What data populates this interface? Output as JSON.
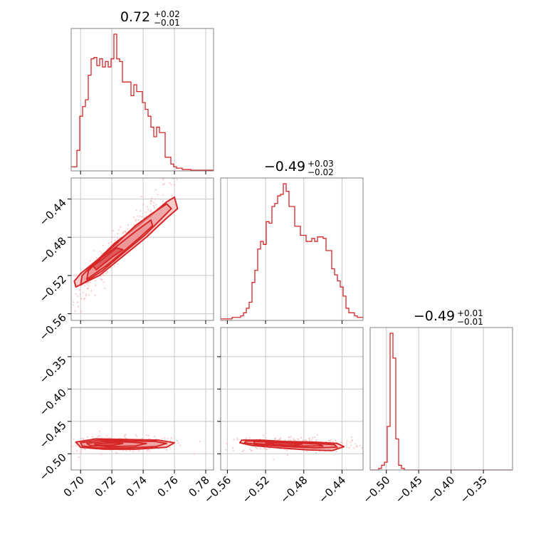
{
  "colors": {
    "line": "#d62728",
    "fill_light": "#f4b9b9",
    "fill_mid": "#ea8a8b",
    "scatter": "#f2b8b8",
    "grid": "#c8c8c8",
    "frame": "#808080"
  },
  "chart_data": {
    "type": "corner",
    "grid": true,
    "titles": [
      {
        "main": "0.72",
        "sup": "+0.02",
        "sub": "−0.01"
      },
      {
        "main": "−0.49",
        "sup": "+0.03",
        "sub": "−0.02"
      },
      {
        "main": "−0.49",
        "sup": "+0.01",
        "sub": "−0.01"
      }
    ],
    "parameters": [
      {
        "range": [
          0.694,
          0.785
        ],
        "ticks": [
          0.7,
          0.72,
          0.74,
          0.76,
          0.78
        ],
        "tick_labels": [
          "0.70",
          "0.72",
          "0.74",
          "0.76",
          "0.78"
        ]
      },
      {
        "range": [
          -0.567,
          -0.418
        ],
        "ticks": [
          -0.56,
          -0.52,
          -0.48,
          -0.44
        ],
        "tick_labels": [
          "−0.56",
          "−0.52",
          "−0.48",
          "−0.44"
        ]
      },
      {
        "range": [
          -0.525,
          -0.305
        ],
        "ticks": [
          -0.5,
          -0.45,
          -0.4,
          -0.35
        ],
        "tick_labels": [
          "−0.50",
          "−0.45",
          "−0.40",
          "−0.35"
        ]
      }
    ],
    "histograms": [
      {
        "parameter": 0,
        "bin_range": [
          0.694,
          0.785
        ],
        "n_bins": 50,
        "heights": [
          3,
          3,
          15,
          40,
          47,
          52,
          70,
          82,
          83,
          77,
          82,
          76,
          80,
          76,
          82,
          100,
          82,
          80,
          65,
          65,
          65,
          55,
          63,
          58,
          58,
          50,
          45,
          40,
          32,
          25,
          32,
          28,
          28,
          10,
          10,
          5,
          3,
          2,
          2,
          1,
          1,
          1,
          0.5,
          0.5,
          0.5,
          0.5,
          0.5,
          0.5,
          0.5,
          0.5
        ]
      },
      {
        "parameter": 1,
        "bin_range": [
          -0.567,
          -0.418
        ],
        "n_bins": 50,
        "heights": [
          1,
          1,
          1,
          1,
          2,
          2,
          2,
          3,
          5,
          8,
          12,
          25,
          33,
          47,
          52,
          50,
          65,
          64,
          75,
          77,
          82,
          83,
          90,
          85,
          75,
          75,
          62,
          62,
          56,
          56,
          52,
          52,
          54,
          52,
          55,
          55,
          54,
          46,
          46,
          34,
          30,
          26,
          22,
          16,
          8,
          5,
          5,
          3,
          2,
          2
        ]
      },
      {
        "parameter": 2,
        "bin_range": [
          -0.525,
          -0.305
        ],
        "n_bins": 50,
        "heights": [
          0,
          0,
          0,
          1,
          3,
          5,
          28,
          88,
          72,
          20,
          3,
          1,
          0,
          0,
          0,
          0,
          0,
          0,
          0,
          0,
          0,
          0,
          0,
          0,
          0,
          0,
          0,
          0,
          0,
          0,
          0,
          0,
          0,
          0,
          0,
          0,
          0,
          0,
          0,
          0,
          0,
          0,
          0,
          0,
          0,
          0,
          0,
          0,
          0,
          0
        ]
      }
    ],
    "joint_panels": [
      {
        "x": 0,
        "y": 1,
        "mean": [
          0.722,
          -0.494
        ],
        "sd": [
          0.014,
          0.028
        ],
        "corr": 0.97,
        "contours": [
          [
            [
              0.697,
              -0.532
            ],
            [
              0.712,
              -0.52
            ],
            [
              0.727,
              -0.5
            ],
            [
              0.742,
              -0.48
            ],
            [
              0.755,
              -0.46
            ],
            [
              0.762,
              -0.45
            ],
            [
              0.76,
              -0.438
            ],
            [
              0.755,
              -0.443
            ],
            [
              0.745,
              -0.457
            ],
            [
              0.735,
              -0.47
            ],
            [
              0.722,
              -0.486
            ],
            [
              0.712,
              -0.502
            ],
            [
              0.7,
              -0.518
            ],
            [
              0.696,
              -0.526
            ]
          ],
          [
            [
              0.7,
              -0.53
            ],
            [
              0.714,
              -0.515
            ],
            [
              0.727,
              -0.497
            ],
            [
              0.741,
              -0.478
            ],
            [
              0.752,
              -0.46
            ],
            [
              0.758,
              -0.45
            ],
            [
              0.755,
              -0.445
            ],
            [
              0.745,
              -0.456
            ],
            [
              0.735,
              -0.468
            ],
            [
              0.722,
              -0.488
            ],
            [
              0.71,
              -0.505
            ],
            [
              0.701,
              -0.52
            ]
          ],
          [
            [
              0.704,
              -0.524
            ],
            [
              0.717,
              -0.509
            ],
            [
              0.728,
              -0.494
            ],
            [
              0.738,
              -0.48
            ],
            [
              0.746,
              -0.468
            ],
            [
              0.745,
              -0.462
            ],
            [
              0.735,
              -0.474
            ],
            [
              0.725,
              -0.487
            ],
            [
              0.713,
              -0.502
            ],
            [
              0.705,
              -0.515
            ]
          ],
          [
            [
              0.71,
              -0.514
            ],
            [
              0.72,
              -0.501
            ],
            [
              0.727,
              -0.493
            ],
            [
              0.723,
              -0.491
            ],
            [
              0.714,
              -0.503
            ],
            [
              0.708,
              -0.51
            ]
          ]
        ]
      },
      {
        "x": 0,
        "y": 2,
        "mean": [
          0.722,
          -0.485
        ],
        "sd": [
          0.015,
          0.004
        ],
        "corr": 0.0,
        "contours": [
          [
            [
              0.697,
              -0.482
            ],
            [
              0.71,
              -0.477
            ],
            [
              0.73,
              -0.478
            ],
            [
              0.75,
              -0.479
            ],
            [
              0.76,
              -0.483
            ],
            [
              0.755,
              -0.49
            ],
            [
              0.735,
              -0.493
            ],
            [
              0.715,
              -0.493
            ],
            [
              0.7,
              -0.49
            ]
          ],
          [
            [
              0.7,
              -0.483
            ],
            [
              0.712,
              -0.479
            ],
            [
              0.73,
              -0.48
            ],
            [
              0.748,
              -0.481
            ],
            [
              0.755,
              -0.484
            ],
            [
              0.748,
              -0.489
            ],
            [
              0.73,
              -0.491
            ],
            [
              0.712,
              -0.491
            ],
            [
              0.701,
              -0.488
            ]
          ],
          [
            [
              0.704,
              -0.484
            ],
            [
              0.715,
              -0.481
            ],
            [
              0.732,
              -0.482
            ],
            [
              0.742,
              -0.484
            ],
            [
              0.735,
              -0.488
            ],
            [
              0.718,
              -0.489
            ],
            [
              0.706,
              -0.487
            ]
          ],
          [
            [
              0.709,
              -0.485
            ],
            [
              0.718,
              -0.483
            ],
            [
              0.727,
              -0.484
            ],
            [
              0.72,
              -0.487
            ],
            [
              0.711,
              -0.487
            ]
          ]
        ]
      },
      {
        "x": 1,
        "y": 2,
        "mean": [
          -0.49,
          -0.485
        ],
        "sd": [
          0.025,
          0.004
        ],
        "corr": 0.0,
        "contours": [
          [
            [
              -0.545,
              -0.479
            ],
            [
              -0.525,
              -0.479
            ],
            [
              -0.5,
              -0.481
            ],
            [
              -0.47,
              -0.482
            ],
            [
              -0.445,
              -0.484
            ],
            [
              -0.438,
              -0.489
            ],
            [
              -0.45,
              -0.495
            ],
            [
              -0.475,
              -0.494
            ],
            [
              -0.505,
              -0.491
            ],
            [
              -0.535,
              -0.487
            ],
            [
              -0.547,
              -0.483
            ]
          ],
          [
            [
              -0.54,
              -0.48
            ],
            [
              -0.52,
              -0.481
            ],
            [
              -0.495,
              -0.482
            ],
            [
              -0.468,
              -0.484
            ],
            [
              -0.448,
              -0.486
            ],
            [
              -0.445,
              -0.49
            ],
            [
              -0.468,
              -0.491
            ],
            [
              -0.498,
              -0.489
            ],
            [
              -0.528,
              -0.486
            ],
            [
              -0.542,
              -0.483
            ]
          ],
          [
            [
              -0.532,
              -0.481
            ],
            [
              -0.512,
              -0.482
            ],
            [
              -0.49,
              -0.483
            ],
            [
              -0.465,
              -0.485
            ],
            [
              -0.46,
              -0.488
            ],
            [
              -0.485,
              -0.488
            ],
            [
              -0.515,
              -0.486
            ],
            [
              -0.532,
              -0.484
            ]
          ],
          [
            [
              -0.52,
              -0.483
            ],
            [
              -0.5,
              -0.483
            ],
            [
              -0.482,
              -0.485
            ],
            [
              -0.49,
              -0.487
            ],
            [
              -0.51,
              -0.486
            ]
          ]
        ]
      }
    ]
  }
}
